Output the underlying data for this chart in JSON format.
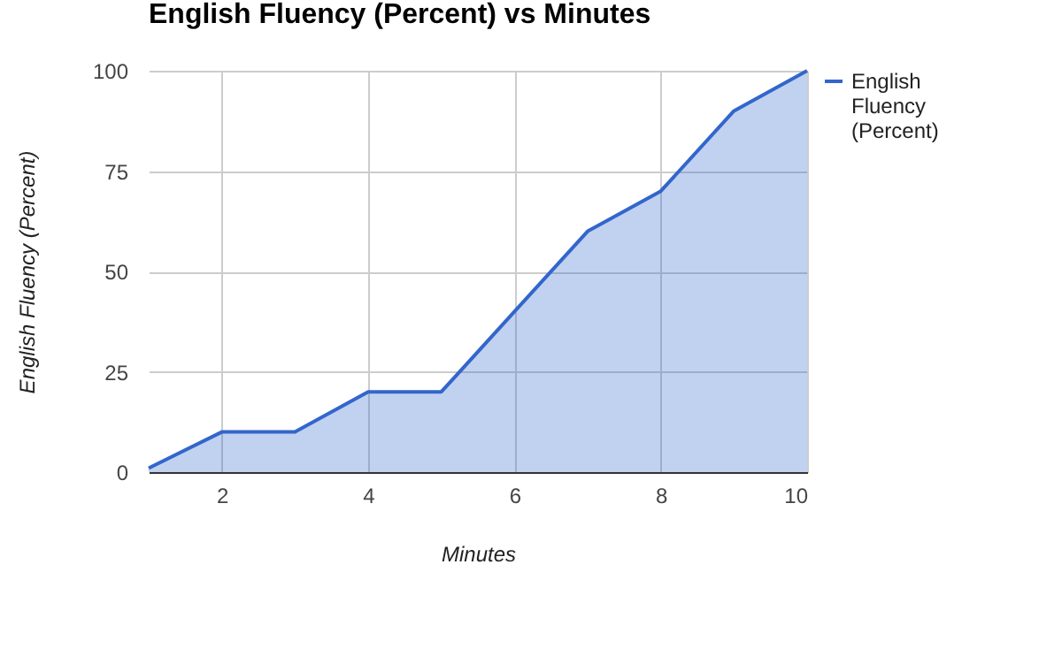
{
  "chart_data": {
    "type": "area",
    "title": "English Fluency (Percent) vs Minutes",
    "xlabel": "Minutes",
    "ylabel": "English Fluency (Percent)",
    "x": [
      1,
      2,
      3,
      4,
      5,
      6,
      7,
      8,
      9,
      10
    ],
    "series": [
      {
        "name": "English Fluency (Percent)",
        "color": "#3366cc",
        "values": [
          1,
          10,
          10,
          20,
          20,
          40,
          60,
          70,
          90,
          100
        ]
      }
    ],
    "xlim": [
      1,
      10
    ],
    "xticks": [
      2,
      4,
      6,
      8,
      10
    ],
    "ylim": [
      0,
      100
    ],
    "yticks": [
      0,
      25,
      50,
      75,
      100
    ],
    "grid": true,
    "legend": "right"
  }
}
